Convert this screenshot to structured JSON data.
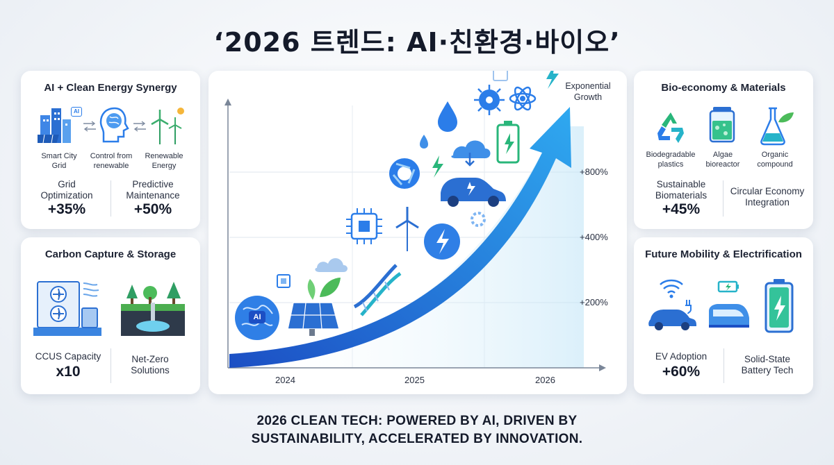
{
  "title": "‘2026 트렌드: AI·친환경·바이오’",
  "cards": {
    "ai_energy": {
      "title": "AI + Clean Energy Synergy",
      "captions": [
        "Smart City Grid",
        "Control from renewable",
        "Renewable Energy"
      ],
      "icon_badge": "AI",
      "stats": [
        {
          "label": "Grid Optimization",
          "value": "+35%"
        },
        {
          "label": "Predictive Maintenance",
          "value": "+50%"
        }
      ]
    },
    "carbon": {
      "title": "Carbon Capture & Storage",
      "stats": [
        {
          "label": "CCUS Capacity",
          "value": "x10"
        },
        {
          "label": "Net-Zero Solutions",
          "value": ""
        }
      ]
    },
    "bio": {
      "title": "Bio-economy & Materials",
      "captions": [
        "Biodegradable plastics",
        "Algae bioreactor",
        "Organic compound"
      ],
      "stats": [
        {
          "label": "Sustainable Biomaterials",
          "value": "+45%"
        },
        {
          "label": "Circular Economy Integration",
          "value": ""
        }
      ]
    },
    "mobility": {
      "title": "Future Mobility & Electrification",
      "stats": [
        {
          "label": "EV Adoption",
          "value": "+60%"
        },
        {
          "label": "Solid-State Battery Tech",
          "value": ""
        }
      ]
    }
  },
  "chart": {
    "growth_label": "Exponential Growth",
    "brain_badge": "AI",
    "x_ticks": [
      "2024",
      "2025",
      "2026"
    ],
    "y_ticks": [
      "+200%",
      "+400%",
      "+800%"
    ]
  },
  "footer": {
    "line1": "2026 CLEAN TECH: POWERED BY AI, DRIVEN BY",
    "line2": "SUSTAINABILITY, ACCELERATED BY INNOVATION."
  },
  "colors": {
    "accent": "#1f6fe0",
    "icon_blue": "#2b7de9",
    "icon_teal": "#26b3c9",
    "icon_green": "#4cbb5a"
  }
}
